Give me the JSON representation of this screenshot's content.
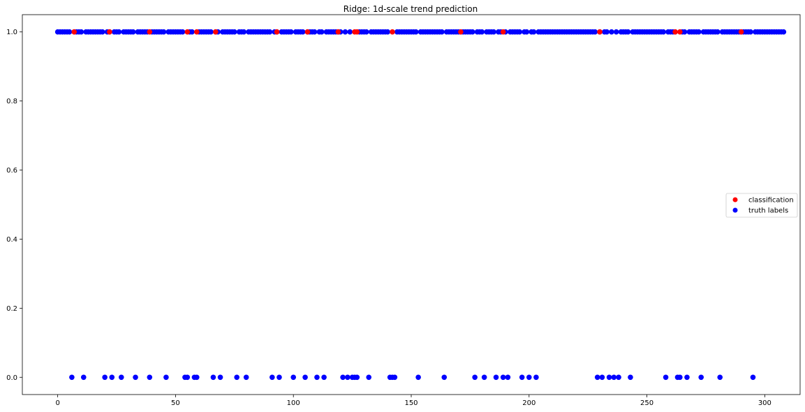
{
  "chart_data": {
    "type": "scatter",
    "title": "Ridge: 1d-scale trend prediction",
    "xlabel": "",
    "ylabel": "",
    "xlim": [
      -15,
      315
    ],
    "ylim": [
      -0.05,
      1.05
    ],
    "x_ticks": [
      0,
      50,
      100,
      150,
      200,
      250,
      300
    ],
    "y_ticks": [
      0.0,
      0.2,
      0.4,
      0.6,
      0.8,
      1.0
    ],
    "x_tick_labels": [
      "0",
      "50",
      "100",
      "150",
      "200",
      "250",
      "300"
    ],
    "y_tick_labels": [
      "0.0",
      "0.2",
      "0.4",
      "0.6",
      "0.8",
      "1.0"
    ],
    "grid": false,
    "legend_position": "center-right",
    "colors": {
      "classification": "#ff0000",
      "truth labels": "#0000ff"
    },
    "series": [
      {
        "name": "classification",
        "color": "#ff0000",
        "x": [
          7,
          22,
          39,
          55,
          59,
          67,
          93,
          106,
          119,
          126,
          127,
          142,
          171,
          189,
          230,
          262,
          264,
          290
        ],
        "y": [
          1,
          1,
          1,
          1,
          1,
          1,
          1,
          1,
          1,
          1,
          1,
          1,
          1,
          1,
          1,
          1,
          1,
          1
        ]
      },
      {
        "name": "truth labels",
        "x_range_y1": [
          0,
          308
        ],
        "y_value": 1,
        "x_y0": [
          6,
          11,
          20,
          23,
          27,
          33,
          39,
          46,
          54,
          55,
          58,
          59,
          66,
          69,
          76,
          80,
          91,
          94,
          100,
          105,
          110,
          113,
          121,
          123,
          125,
          126,
          127,
          132,
          141,
          142,
          143,
          153,
          164,
          177,
          181,
          186,
          189,
          191,
          197,
          200,
          203,
          229,
          231,
          234,
          236,
          238,
          243,
          258,
          263,
          264,
          267,
          273,
          281,
          295
        ],
        "color": "#0000ff"
      }
    ]
  }
}
